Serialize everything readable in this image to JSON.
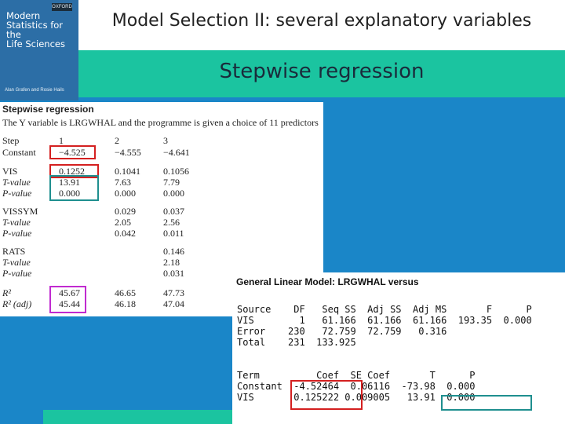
{
  "slide": {
    "title": "Model Selection II: several explanatory variables",
    "subtitle": "Stepwise regression"
  },
  "book_cover": {
    "publisher": "OXFORD",
    "title_lines": [
      "Modern",
      "Statistics for the",
      "Life Sciences"
    ],
    "authors": "Alan Grafen and Rosie Hails"
  },
  "colors": {
    "background": "#1a86c8",
    "band": "#1bc4a0",
    "red_box": "#d42020",
    "teal_box": "#1f8f8f",
    "magenta_box": "#c02ad0"
  },
  "stepwise": {
    "heading": "Stepwise regression",
    "description": "The Y variable is LRGWHAL and the programme is given a choice of 11 predictors",
    "rows": [
      {
        "label": "Step",
        "italic": false,
        "v1": "1",
        "v2": "2",
        "v3": "3"
      },
      {
        "label": "Constant",
        "italic": false,
        "v1": "−4.525",
        "v2": "−4.555",
        "v3": "−4.641"
      },
      {
        "label": "VIS",
        "italic": false,
        "v1": "0.1252",
        "v2": "0.1041",
        "v3": "0.1056"
      },
      {
        "label": "T-value",
        "italic": true,
        "v1": "13.91",
        "v2": "7.63",
        "v3": "7.79"
      },
      {
        "label": "P-value",
        "italic": true,
        "v1": "0.000",
        "v2": "0.000",
        "v3": "0.000"
      },
      {
        "label": "VISSYM",
        "italic": false,
        "v1": "",
        "v2": "0.029",
        "v3": "0.037"
      },
      {
        "label": "T-value",
        "italic": true,
        "v1": "",
        "v2": "2.05",
        "v3": "2.56"
      },
      {
        "label": "P-value",
        "italic": true,
        "v1": "",
        "v2": "0.042",
        "v3": "0.011"
      },
      {
        "label": "RATS",
        "italic": false,
        "v1": "",
        "v2": "",
        "v3": "0.146"
      },
      {
        "label": "T-value",
        "italic": true,
        "v1": "",
        "v2": "",
        "v3": "2.18"
      },
      {
        "label": "P-value",
        "italic": true,
        "v1": "",
        "v2": "",
        "v3": "0.031"
      },
      {
        "label": "R²",
        "italic": true,
        "v1": "45.67",
        "v2": "46.65",
        "v3": "47.73"
      },
      {
        "label": "R² (adj)",
        "italic": true,
        "v1": "45.44",
        "v2": "46.18",
        "v3": "47.04"
      }
    ]
  },
  "glm": {
    "heading": "General Linear Model: LRGWHAL versus",
    "anova_header": [
      "Source",
      "DF",
      "Seq SS",
      "Adj SS",
      "Adj MS",
      "F",
      "P"
    ],
    "anova_rows": [
      [
        "VIS",
        "1",
        "61.166",
        "61.166",
        "61.166",
        "193.35",
        "0.000"
      ],
      [
        "Error",
        "230",
        "72.759",
        "72.759",
        "0.316",
        "",
        ""
      ],
      [
        "Total",
        "231",
        "133.925",
        "",
        "",
        "",
        ""
      ]
    ],
    "coef_header": [
      "Term",
      "Coef",
      "SE Coef",
      "T",
      "P"
    ],
    "coef_rows": [
      [
        "Constant",
        "-4.52464",
        "0.06116",
        "-73.98",
        "0.000"
      ],
      [
        "VIS",
        "0.125222",
        "0.009005",
        "13.91",
        "0.000"
      ]
    ]
  }
}
